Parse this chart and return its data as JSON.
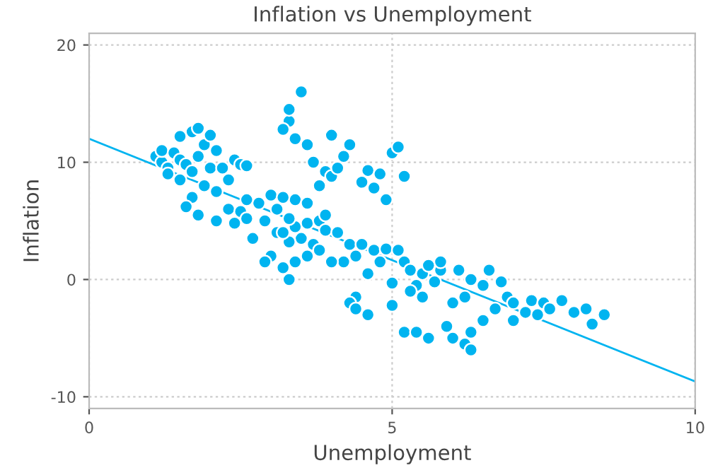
{
  "chart_data": {
    "type": "scatter",
    "title": "Inflation vs Unemployment",
    "xlabel": "Unemployment",
    "ylabel": "Inflation",
    "xlim": [
      0,
      10
    ],
    "ylim": [
      -11,
      21
    ],
    "xticks": [
      0,
      5,
      10
    ],
    "yticks": [
      -10,
      0,
      10,
      20
    ],
    "grid": true,
    "series": [
      {
        "marker": "circle",
        "color": "#00b4f0",
        "x": [
          1.1,
          1.2,
          1.3,
          1.2,
          1.4,
          1.5,
          1.6,
          1.3,
          1.5,
          1.7,
          1.8,
          1.9,
          2.0,
          1.7,
          1.8,
          1.5,
          2.1,
          2.0,
          1.9,
          1.7,
          1.6,
          1.8,
          2.1,
          2.3,
          2.2,
          2.4,
          2.5,
          2.6,
          2.3,
          2.5,
          2.6,
          2.4,
          2.1,
          2.8,
          2.6,
          3.0,
          2.9,
          3.1,
          3.0,
          2.9,
          3.2,
          3.3,
          3.4,
          3.6,
          3.7,
          3.5,
          3.3,
          3.2,
          3.4,
          3.6,
          3.8,
          3.3,
          3.1,
          3.4,
          3.2,
          3.6,
          3.9,
          3.9,
          4.1,
          4.3,
          4.4,
          4.2,
          3.3,
          3.3,
          3.5,
          3.2,
          3.4,
          3.6,
          3.7,
          3.9,
          4.0,
          4.1,
          4.2,
          4.0,
          4.3,
          3.8,
          4.5,
          4.6,
          4.8,
          4.7,
          5.0,
          5.1,
          5.2,
          4.9,
          4.5,
          4.7,
          4.9,
          5.1,
          5.2,
          5.3,
          5.5,
          5.6,
          5.8,
          5.4,
          5.3,
          5.5,
          5.0,
          4.4,
          4.3,
          4.4,
          4.6,
          5.0,
          5.2,
          5.4,
          5.6,
          5.9,
          6.0,
          6.2,
          6.3,
          6.3,
          6.0,
          6.2,
          6.3,
          6.1,
          6.5,
          6.6,
          6.8,
          6.9,
          7.0,
          6.7,
          6.5,
          7.2,
          7.3,
          7.5,
          7.6,
          7.8,
          8.0,
          8.2,
          8.3,
          8.5,
          7.4,
          7.0,
          5.8,
          5.7,
          4.8,
          4.6,
          4.0,
          3.8,
          2.7
        ],
        "values": [
          10.5,
          10,
          9.5,
          11,
          10.8,
          10.2,
          9.8,
          9,
          8.5,
          9.2,
          10.5,
          11.5,
          12.3,
          12.6,
          12.9,
          12.2,
          11,
          9.5,
          8.0,
          7.0,
          6.2,
          5.5,
          7.5,
          8.5,
          9.5,
          10.2,
          9.8,
          9.7,
          6,
          5.8,
          5.2,
          4.8,
          5.0,
          6.5,
          6.8,
          7.2,
          5.0,
          4.0,
          2.0,
          1.5,
          1.0,
          0.0,
          1.5,
          2.0,
          3.0,
          3.5,
          3.2,
          4.0,
          4.5,
          4.8,
          5.0,
          5.2,
          6.0,
          6.8,
          7.0,
          6.5,
          5.5,
          4.2,
          4.0,
          3.0,
          2.0,
          1.5,
          13.5,
          14.5,
          16,
          12.8,
          12.0,
          11.5,
          10.0,
          9.2,
          8.8,
          9.5,
          10.5,
          12.3,
          11.5,
          8.0,
          8.3,
          9.3,
          9.0,
          7.8,
          10.8,
          11.3,
          8.8,
          6.8,
          3.0,
          2.5,
          2.6,
          2.5,
          1.5,
          0.8,
          0.5,
          1.2,
          0.8,
          -0.5,
          -1.0,
          -1.5,
          -0.3,
          -1.5,
          -2.0,
          -2.5,
          -3.0,
          -2.2,
          -4.5,
          -4.5,
          -5.0,
          -4.0,
          -5.0,
          -5.5,
          -6.0,
          -4.5,
          -2.0,
          -1.5,
          0,
          0.8,
          -0.5,
          0.8,
          -0.2,
          -1.5,
          -2.0,
          -2.5,
          -3.5,
          -2.8,
          -1.8,
          -2.0,
          -2.5,
          -1.8,
          -2.8,
          -2.5,
          -3.8,
          -3.0,
          -3.0,
          -3.5,
          1.5,
          -0.2,
          1.5,
          0.5,
          1.5,
          2.5,
          3.5
        ]
      },
      {
        "type": "line",
        "marker": "none",
        "color": "#00b4f0",
        "x": [
          0,
          10
        ],
        "values": [
          12,
          -8.7
        ]
      }
    ]
  }
}
